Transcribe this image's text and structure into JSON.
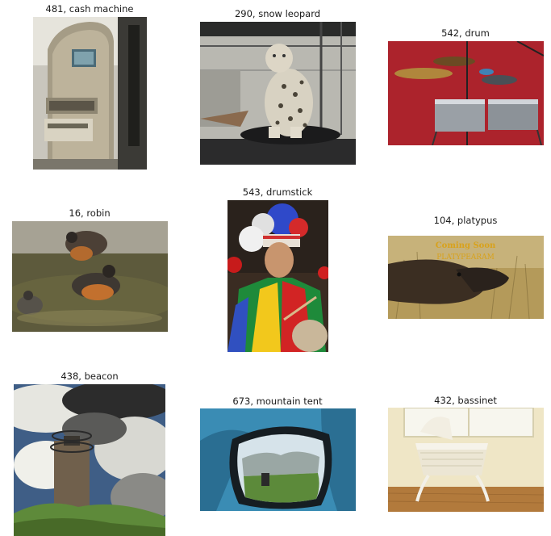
{
  "grid": {
    "items": [
      {
        "label": "481, cash machine"
      },
      {
        "label": "290, snow leopard"
      },
      {
        "label": "542, drum"
      },
      {
        "label": "16, robin"
      },
      {
        "label": "543, drumstick"
      },
      {
        "label": "104, platypus",
        "overlay_text_1": "Coming Soon",
        "overlay_text_2": "PLATYPEARAM"
      },
      {
        "label": "438, beacon"
      },
      {
        "label": "673, mountain tent"
      },
      {
        "label": "432, bassinet"
      }
    ]
  }
}
